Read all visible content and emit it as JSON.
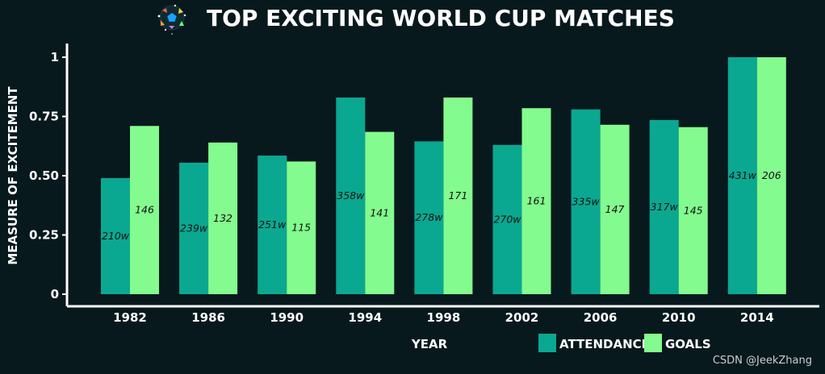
{
  "watermark": "CSDN @JeekZhang",
  "colors": {
    "background": "#08191d",
    "attendance": "#0aa891",
    "goals": "#84fb8e",
    "axis": "#ffffff",
    "text": "#ffffff"
  },
  "logo": {
    "icon": "world-cup-ball-logo"
  },
  "chart_data": {
    "type": "bar",
    "title": "TOP EXCITING WORLD CUP MATCHES",
    "xlabel": "YEAR",
    "ylabel": "MEASURE OF EXCITEMENT",
    "ylim": [
      0,
      1.05
    ],
    "yticks": [
      0,
      0.25,
      0.5,
      0.75,
      1
    ],
    "ytick_labels": [
      "0",
      "0.25",
      "0.50",
      "0.75",
      "1"
    ],
    "grid": false,
    "legend_position": "bottom-right",
    "categories": [
      "1982",
      "1986",
      "1990",
      "1994",
      "1998",
      "2002",
      "2006",
      "2010",
      "2014"
    ],
    "series": [
      {
        "name": "ATTENDANCE",
        "values": [
          0.49,
          0.555,
          0.585,
          0.83,
          0.645,
          0.63,
          0.78,
          0.735,
          1.0
        ],
        "labels": [
          "210w",
          "239w",
          "251w",
          "358w",
          "278w",
          "270w",
          "335w",
          "317w",
          "431w"
        ]
      },
      {
        "name": "GOALS",
        "values": [
          0.71,
          0.64,
          0.56,
          0.685,
          0.83,
          0.785,
          0.715,
          0.705,
          1.0
        ],
        "labels": [
          "146",
          "132",
          "115",
          "141",
          "171",
          "161",
          "147",
          "145",
          "206"
        ]
      }
    ]
  }
}
